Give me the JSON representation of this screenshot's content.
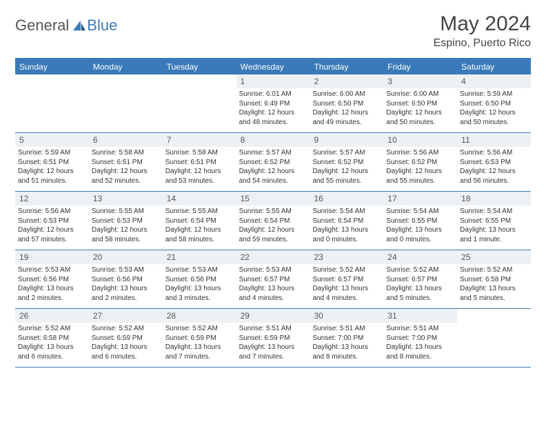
{
  "brand": {
    "part1": "General",
    "part2": "Blue"
  },
  "title": "May 2024",
  "location": "Espino, Puerto Rico",
  "colors": {
    "accent": "#3a7ab8",
    "header_bg": "#3a7ab8",
    "daynum_bg": "#eef1f3",
    "text": "#333333",
    "border": "#3a7ab8"
  },
  "layout": {
    "columns": 7,
    "rows": 5,
    "first_weekday_index": 3
  },
  "weekdays": [
    "Sunday",
    "Monday",
    "Tuesday",
    "Wednesday",
    "Thursday",
    "Friday",
    "Saturday"
  ],
  "days": [
    {
      "n": 1,
      "sunrise": "6:01 AM",
      "sunset": "6:49 PM",
      "daylight": "12 hours and 48 minutes."
    },
    {
      "n": 2,
      "sunrise": "6:00 AM",
      "sunset": "6:50 PM",
      "daylight": "12 hours and 49 minutes."
    },
    {
      "n": 3,
      "sunrise": "6:00 AM",
      "sunset": "6:50 PM",
      "daylight": "12 hours and 50 minutes."
    },
    {
      "n": 4,
      "sunrise": "5:59 AM",
      "sunset": "6:50 PM",
      "daylight": "12 hours and 50 minutes."
    },
    {
      "n": 5,
      "sunrise": "5:59 AM",
      "sunset": "6:51 PM",
      "daylight": "12 hours and 51 minutes."
    },
    {
      "n": 6,
      "sunrise": "5:58 AM",
      "sunset": "6:51 PM",
      "daylight": "12 hours and 52 minutes."
    },
    {
      "n": 7,
      "sunrise": "5:58 AM",
      "sunset": "6:51 PM",
      "daylight": "12 hours and 53 minutes."
    },
    {
      "n": 8,
      "sunrise": "5:57 AM",
      "sunset": "6:52 PM",
      "daylight": "12 hours and 54 minutes."
    },
    {
      "n": 9,
      "sunrise": "5:57 AM",
      "sunset": "6:52 PM",
      "daylight": "12 hours and 55 minutes."
    },
    {
      "n": 10,
      "sunrise": "5:56 AM",
      "sunset": "6:52 PM",
      "daylight": "12 hours and 55 minutes."
    },
    {
      "n": 11,
      "sunrise": "5:56 AM",
      "sunset": "6:53 PM",
      "daylight": "12 hours and 56 minutes."
    },
    {
      "n": 12,
      "sunrise": "5:56 AM",
      "sunset": "6:53 PM",
      "daylight": "12 hours and 57 minutes."
    },
    {
      "n": 13,
      "sunrise": "5:55 AM",
      "sunset": "6:53 PM",
      "daylight": "12 hours and 58 minutes."
    },
    {
      "n": 14,
      "sunrise": "5:55 AM",
      "sunset": "6:54 PM",
      "daylight": "12 hours and 58 minutes."
    },
    {
      "n": 15,
      "sunrise": "5:55 AM",
      "sunset": "6:54 PM",
      "daylight": "12 hours and 59 minutes."
    },
    {
      "n": 16,
      "sunrise": "5:54 AM",
      "sunset": "6:54 PM",
      "daylight": "13 hours and 0 minutes."
    },
    {
      "n": 17,
      "sunrise": "5:54 AM",
      "sunset": "6:55 PM",
      "daylight": "13 hours and 0 minutes."
    },
    {
      "n": 18,
      "sunrise": "5:54 AM",
      "sunset": "6:55 PM",
      "daylight": "13 hours and 1 minute."
    },
    {
      "n": 19,
      "sunrise": "5:53 AM",
      "sunset": "6:56 PM",
      "daylight": "13 hours and 2 minutes."
    },
    {
      "n": 20,
      "sunrise": "5:53 AM",
      "sunset": "6:56 PM",
      "daylight": "13 hours and 2 minutes."
    },
    {
      "n": 21,
      "sunrise": "5:53 AM",
      "sunset": "6:56 PM",
      "daylight": "13 hours and 3 minutes."
    },
    {
      "n": 22,
      "sunrise": "5:53 AM",
      "sunset": "6:57 PM",
      "daylight": "13 hours and 4 minutes."
    },
    {
      "n": 23,
      "sunrise": "5:52 AM",
      "sunset": "6:57 PM",
      "daylight": "13 hours and 4 minutes."
    },
    {
      "n": 24,
      "sunrise": "5:52 AM",
      "sunset": "6:57 PM",
      "daylight": "13 hours and 5 minutes."
    },
    {
      "n": 25,
      "sunrise": "5:52 AM",
      "sunset": "6:58 PM",
      "daylight": "13 hours and 5 minutes."
    },
    {
      "n": 26,
      "sunrise": "5:52 AM",
      "sunset": "6:58 PM",
      "daylight": "13 hours and 6 minutes."
    },
    {
      "n": 27,
      "sunrise": "5:52 AM",
      "sunset": "6:59 PM",
      "daylight": "13 hours and 6 minutes."
    },
    {
      "n": 28,
      "sunrise": "5:52 AM",
      "sunset": "6:59 PM",
      "daylight": "13 hours and 7 minutes."
    },
    {
      "n": 29,
      "sunrise": "5:51 AM",
      "sunset": "6:59 PM",
      "daylight": "13 hours and 7 minutes."
    },
    {
      "n": 30,
      "sunrise": "5:51 AM",
      "sunset": "7:00 PM",
      "daylight": "13 hours and 8 minutes."
    },
    {
      "n": 31,
      "sunrise": "5:51 AM",
      "sunset": "7:00 PM",
      "daylight": "13 hours and 8 minutes."
    }
  ],
  "labels": {
    "sunrise": "Sunrise:",
    "sunset": "Sunset:",
    "daylight": "Daylight:"
  }
}
